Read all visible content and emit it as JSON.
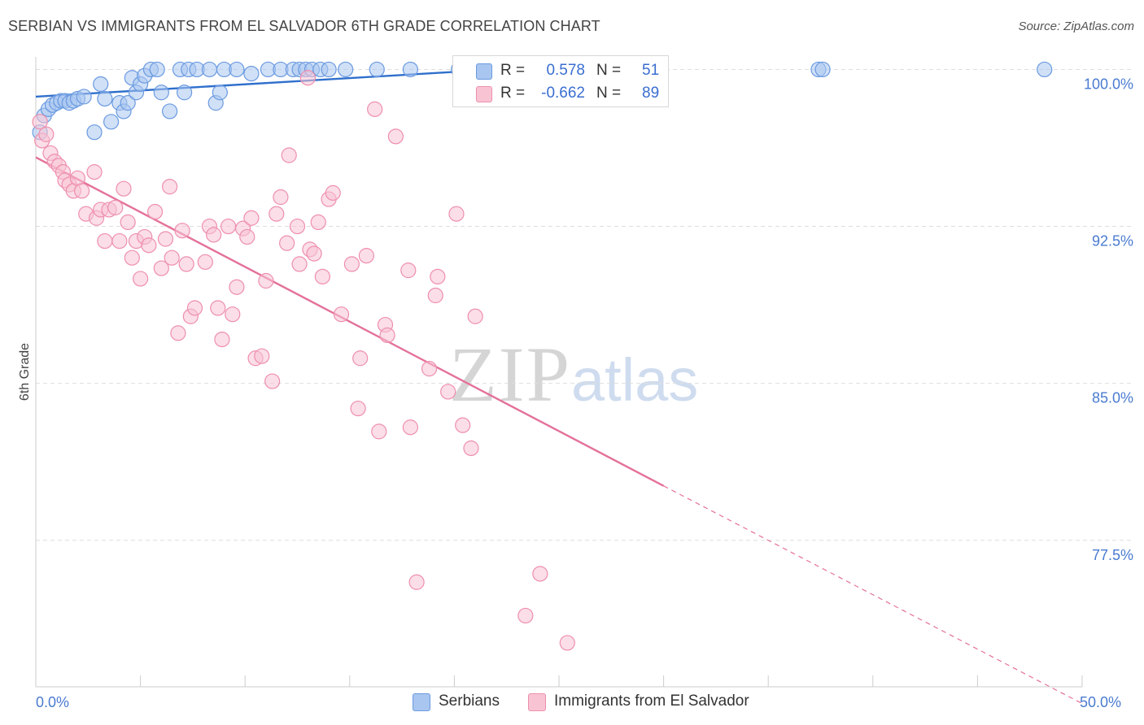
{
  "title": "SERBIAN VS IMMIGRANTS FROM EL SALVADOR 6TH GRADE CORRELATION CHART",
  "source": "Source: ZipAtlas.com",
  "watermark": {
    "zip": "ZIP",
    "atlas": "atlas"
  },
  "legend": {
    "r_label": "R =",
    "n_label": "N =",
    "rows": [
      {
        "r": "0.578",
        "n": "51",
        "color": "#a9c6f0",
        "border": "#6a9ae0"
      },
      {
        "r": "-0.662",
        "n": "89",
        "color": "#f8c3d3",
        "border": "#ee8fad"
      }
    ]
  },
  "bottom_legend": [
    {
      "label": "Serbians",
      "color": "#a9c6f0",
      "border": "#6a9ae0"
    },
    {
      "label": "Immigrants from El Salvador",
      "color": "#f8c3d3",
      "border": "#ee8fad"
    }
  ],
  "chart_data": {
    "type": "scatter",
    "title": "SERBIAN VS IMMIGRANTS FROM EL SALVADOR 6TH GRADE CORRELATION CHART",
    "xlabel": "",
    "ylabel": "6th Grade",
    "xlim": [
      0,
      50
    ],
    "ylim": [
      70.5,
      100.6
    ],
    "x_tick_labels": [
      {
        "value": 0,
        "label": "0.0%"
      },
      {
        "value": 50,
        "label": "50.0%"
      }
    ],
    "y_tick_labels": [
      {
        "value": 100,
        "label": "100.0%"
      },
      {
        "value": 92.5,
        "label": "92.5%"
      },
      {
        "value": 85,
        "label": "85.0%"
      },
      {
        "value": 77.5,
        "label": "77.5%"
      }
    ],
    "grid": true,
    "series": [
      {
        "name": "Serbians",
        "color": "#6a9ae0",
        "fill": "#a9c6f0",
        "trend": {
          "x0": 0,
          "y0": 98.7,
          "x1": 22,
          "y1": 100.0
        },
        "points": [
          [
            0.2,
            97.0
          ],
          [
            0.4,
            97.8
          ],
          [
            0.6,
            98.1
          ],
          [
            0.8,
            98.3
          ],
          [
            1.0,
            98.4
          ],
          [
            1.2,
            98.5
          ],
          [
            1.4,
            98.5
          ],
          [
            1.6,
            98.4
          ],
          [
            1.8,
            98.5
          ],
          [
            2.0,
            98.6
          ],
          [
            2.3,
            98.7
          ],
          [
            2.8,
            97.0
          ],
          [
            3.1,
            99.3
          ],
          [
            3.3,
            98.6
          ],
          [
            3.6,
            97.5
          ],
          [
            4.0,
            98.4
          ],
          [
            4.2,
            98.0
          ],
          [
            4.4,
            98.4
          ],
          [
            4.6,
            99.6
          ],
          [
            4.8,
            98.9
          ],
          [
            5.0,
            99.3
          ],
          [
            5.2,
            99.7
          ],
          [
            5.5,
            100.0
          ],
          [
            5.8,
            100.0
          ],
          [
            6.0,
            98.9
          ],
          [
            6.4,
            98.0
          ],
          [
            6.9,
            100.0
          ],
          [
            7.1,
            98.9
          ],
          [
            7.3,
            100.0
          ],
          [
            7.7,
            100.0
          ],
          [
            8.3,
            100.0
          ],
          [
            8.6,
            98.4
          ],
          [
            8.8,
            98.9
          ],
          [
            9.0,
            100.0
          ],
          [
            9.6,
            100.0
          ],
          [
            10.3,
            99.8
          ],
          [
            11.1,
            100.0
          ],
          [
            11.7,
            100.0
          ],
          [
            12.3,
            100.0
          ],
          [
            12.6,
            100.0
          ],
          [
            12.9,
            100.0
          ],
          [
            13.2,
            100.0
          ],
          [
            13.6,
            100.0
          ],
          [
            14.0,
            100.0
          ],
          [
            14.8,
            100.0
          ],
          [
            16.3,
            100.0
          ],
          [
            17.9,
            100.0
          ],
          [
            20.2,
            100.0
          ],
          [
            37.4,
            100.0
          ],
          [
            37.6,
            100.0
          ],
          [
            48.2,
            100.0
          ]
        ]
      },
      {
        "name": "Immigrants from El Salvador",
        "color": "#ee8fad",
        "fill": "#f8c3d3",
        "trend": {
          "x0": 0,
          "y0": 95.8,
          "x1": 30,
          "y1": 80.1,
          "dash_to_x": 50,
          "dash_to_y": 69.7
        },
        "points": [
          [
            0.2,
            97.5
          ],
          [
            0.3,
            96.6
          ],
          [
            0.5,
            96.9
          ],
          [
            0.7,
            96.0
          ],
          [
            0.9,
            95.6
          ],
          [
            1.1,
            95.4
          ],
          [
            1.3,
            95.1
          ],
          [
            1.4,
            94.7
          ],
          [
            1.6,
            94.5
          ],
          [
            1.8,
            94.2
          ],
          [
            2.0,
            94.8
          ],
          [
            2.2,
            94.2
          ],
          [
            2.4,
            93.1
          ],
          [
            2.8,
            95.1
          ],
          [
            2.9,
            92.9
          ],
          [
            3.1,
            93.3
          ],
          [
            3.3,
            91.8
          ],
          [
            3.5,
            93.3
          ],
          [
            3.8,
            93.4
          ],
          [
            4.0,
            91.8
          ],
          [
            4.2,
            94.3
          ],
          [
            4.4,
            92.7
          ],
          [
            4.6,
            91.0
          ],
          [
            4.8,
            91.8
          ],
          [
            5.0,
            90.0
          ],
          [
            5.2,
            92.0
          ],
          [
            5.4,
            91.6
          ],
          [
            5.7,
            93.2
          ],
          [
            6.0,
            90.5
          ],
          [
            6.2,
            91.9
          ],
          [
            6.4,
            94.4
          ],
          [
            6.5,
            91.0
          ],
          [
            6.8,
            87.4
          ],
          [
            7.0,
            92.3
          ],
          [
            7.2,
            90.7
          ],
          [
            7.4,
            88.2
          ],
          [
            7.6,
            88.6
          ],
          [
            8.1,
            90.8
          ],
          [
            8.3,
            92.5
          ],
          [
            8.5,
            92.1
          ],
          [
            8.7,
            88.6
          ],
          [
            8.9,
            87.1
          ],
          [
            9.2,
            92.5
          ],
          [
            9.4,
            88.3
          ],
          [
            9.6,
            89.6
          ],
          [
            9.9,
            92.4
          ],
          [
            10.1,
            92.0
          ],
          [
            10.3,
            92.9
          ],
          [
            10.5,
            86.2
          ],
          [
            10.8,
            86.3
          ],
          [
            11.0,
            89.9
          ],
          [
            11.3,
            85.1
          ],
          [
            11.5,
            93.1
          ],
          [
            11.7,
            93.9
          ],
          [
            12.0,
            91.7
          ],
          [
            12.1,
            95.9
          ],
          [
            12.5,
            92.5
          ],
          [
            12.6,
            90.7
          ],
          [
            13.0,
            99.6
          ],
          [
            13.1,
            91.4
          ],
          [
            13.3,
            91.2
          ],
          [
            13.5,
            92.7
          ],
          [
            13.7,
            90.1
          ],
          [
            14.0,
            93.8
          ],
          [
            14.2,
            94.1
          ],
          [
            14.6,
            88.3
          ],
          [
            15.1,
            90.7
          ],
          [
            15.4,
            83.8
          ],
          [
            15.5,
            86.2
          ],
          [
            15.8,
            91.1
          ],
          [
            16.2,
            98.1
          ],
          [
            16.4,
            82.7
          ],
          [
            16.7,
            87.8
          ],
          [
            16.8,
            87.3
          ],
          [
            17.2,
            96.8
          ],
          [
            17.8,
            90.4
          ],
          [
            17.9,
            82.9
          ],
          [
            18.2,
            75.5
          ],
          [
            18.8,
            85.7
          ],
          [
            19.1,
            89.2
          ],
          [
            19.2,
            90.1
          ],
          [
            19.7,
            84.6
          ],
          [
            20.1,
            93.1
          ],
          [
            20.4,
            83.0
          ],
          [
            20.8,
            81.9
          ],
          [
            21.0,
            88.2
          ],
          [
            23.4,
            73.9
          ],
          [
            24.1,
            75.9
          ],
          [
            25.4,
            72.6
          ]
        ]
      }
    ]
  }
}
